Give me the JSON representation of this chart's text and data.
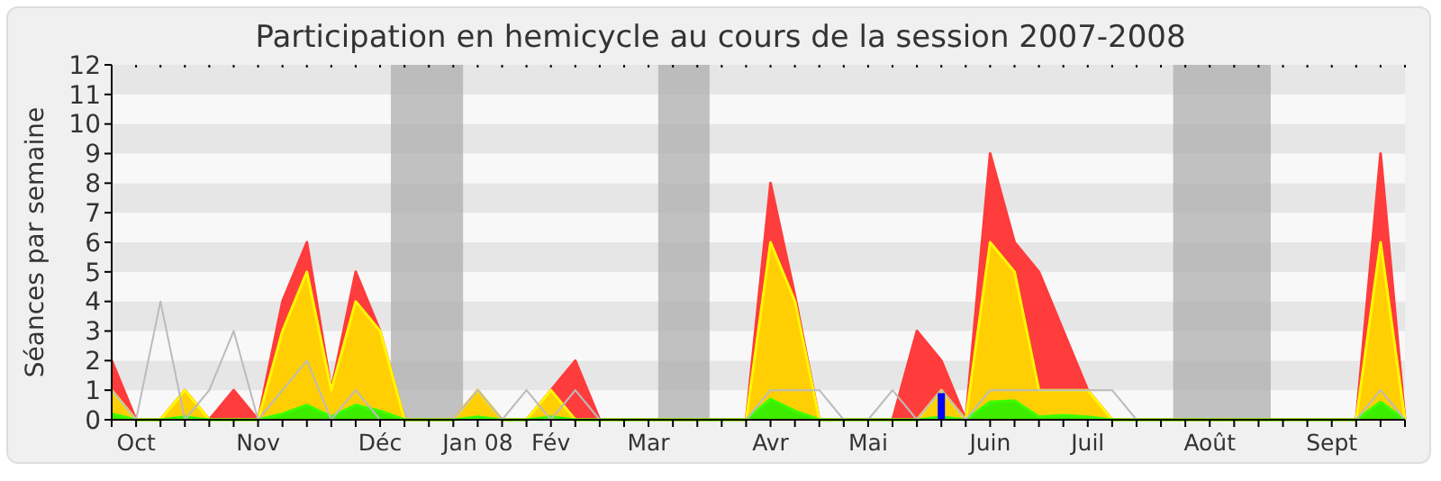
{
  "chart_data": {
    "type": "area",
    "title": "Participation en hemicycle au cours de la session 2007-2008",
    "ylabel": "Séances par semaine",
    "categories": [
      null,
      "Oct",
      null,
      null,
      null,
      null,
      "Nov",
      null,
      null,
      null,
      null,
      "Déc",
      null,
      null,
      null,
      "Jan 08",
      null,
      null,
      "Fév",
      null,
      null,
      null,
      "Mar",
      null,
      null,
      null,
      null,
      "Avr",
      null,
      null,
      null,
      "Mai",
      null,
      null,
      null,
      null,
      "Juin",
      null,
      null,
      null,
      "Juil",
      null,
      null,
      null,
      null,
      "Août",
      null,
      null,
      null,
      null,
      "Sept",
      null,
      null,
      null
    ],
    "series": [
      {
        "color": "#ff3333",
        "values": [
          2,
          0,
          0,
          1,
          0,
          1,
          0,
          4,
          6,
          1,
          5,
          3,
          0,
          0,
          0,
          1,
          0,
          0,
          1,
          2,
          0,
          0,
          0,
          0,
          0,
          0,
          0,
          8,
          4.2,
          0,
          0,
          0,
          0,
          3,
          2,
          0,
          9,
          6,
          5,
          3,
          1,
          0,
          0,
          0,
          0,
          0,
          0,
          0,
          0,
          0,
          0,
          0,
          9,
          0
        ]
      },
      {
        "color": "#ffd700",
        "values": [
          1,
          0,
          0,
          1,
          0,
          0,
          0,
          3,
          5,
          1,
          4,
          3,
          0,
          0,
          0,
          1,
          0,
          0,
          1,
          0,
          0,
          0,
          0,
          0,
          0,
          0,
          0,
          6,
          4,
          0,
          0,
          0,
          0,
          0,
          1,
          0,
          6,
          5,
          1,
          1,
          1,
          0,
          0,
          0,
          0,
          0,
          0,
          0,
          0,
          0,
          0,
          0,
          6,
          0
        ]
      },
      {
        "color": "#33ee00",
        "values": [
          0.2,
          0,
          0,
          0.1,
          0,
          0,
          0,
          0.2,
          0.5,
          0.1,
          0.5,
          0.3,
          0,
          0,
          0,
          0.1,
          0,
          0,
          0.1,
          0,
          0,
          0,
          0,
          0,
          0,
          0,
          0,
          0.7,
          0.3,
          0,
          0,
          0,
          0,
          0,
          0.1,
          0,
          0.6,
          0.65,
          0.1,
          0.15,
          0.1,
          0,
          0,
          0,
          0,
          0,
          0,
          0,
          0,
          0,
          0,
          0,
          0.6,
          0
        ]
      },
      {
        "type": "line",
        "color": "#bbbbbb",
        "values": [
          1,
          0,
          4,
          0,
          1,
          3,
          0,
          1,
          2,
          0,
          1,
          0,
          0,
          0,
          0,
          1,
          0,
          1,
          0,
          1,
          0,
          0,
          0,
          0,
          0,
          0,
          0,
          1,
          1,
          1,
          0,
          0,
          1,
          0,
          1,
          0,
          1,
          1,
          1,
          1,
          1,
          1,
          0,
          0,
          0,
          0,
          0,
          0,
          0,
          0,
          0,
          0,
          1,
          0
        ]
      },
      {
        "type": "bar",
        "color": "#0000ff",
        "values": [
          null,
          null,
          null,
          null,
          null,
          null,
          null,
          null,
          null,
          null,
          null,
          null,
          null,
          null,
          null,
          null,
          null,
          null,
          null,
          null,
          null,
          null,
          null,
          null,
          null,
          null,
          null,
          null,
          null,
          null,
          null,
          null,
          null,
          null,
          0.9,
          null,
          null,
          null,
          null,
          null,
          null,
          null,
          null,
          null,
          null,
          null,
          null,
          null,
          null,
          null,
          null,
          null,
          null,
          null
        ]
      }
    ],
    "ylim": [
      0,
      12
    ],
    "yticks": [
      0,
      1,
      2,
      3,
      4,
      5,
      6,
      7,
      8,
      9,
      10,
      11,
      12
    ]
  }
}
